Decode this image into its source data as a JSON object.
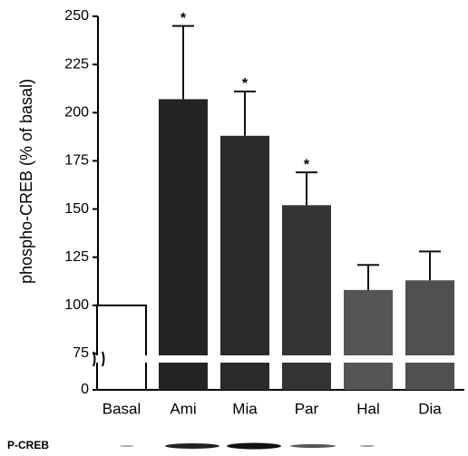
{
  "chart_data": {
    "type": "bar",
    "y_label": "phospho-CREB (% of basal)",
    "categories": [
      "Basal",
      "Ami",
      "Mia",
      "Par",
      "Hal",
      "Dia"
    ],
    "values": [
      100,
      207,
      188,
      152,
      108,
      113
    ],
    "errors": [
      null,
      38,
      23,
      17,
      13,
      15
    ],
    "significance": [
      null,
      "*",
      "*",
      "*",
      null,
      null
    ],
    "colors": [
      "#ffffff",
      "#232323",
      "#2a2a2a",
      "#343434",
      "#555555",
      "#505050"
    ],
    "ylim": [
      0,
      250
    ],
    "axis_break": [
      0,
      75
    ],
    "yticks": [
      0,
      75,
      100,
      125,
      150,
      175,
      200,
      225,
      250
    ],
    "blot_label": "P-CREB"
  }
}
